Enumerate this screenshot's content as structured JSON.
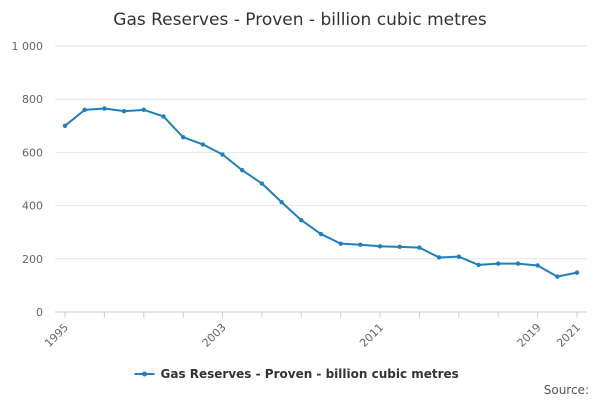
{
  "chart_data": {
    "type": "line",
    "title": "Gas Reserves - Proven - billion cubic metres",
    "xlabel": "",
    "ylabel": "",
    "ylim": [
      0,
      1000
    ],
    "xlim": [
      1995,
      2021
    ],
    "yticks": [
      0,
      200,
      400,
      600,
      800,
      1000
    ],
    "ytick_labels": [
      "0",
      "200",
      "400",
      "600",
      "800",
      "1 000"
    ],
    "xticks": [
      1995,
      2003,
      2011,
      2019,
      2021
    ],
    "xtick_labels": [
      "1995",
      "2003",
      "2011",
      "2019",
      "2021"
    ],
    "grid": true,
    "legend": "bottom",
    "color": "#1f7fbf",
    "series": [
      {
        "name": "Gas Reserves - Proven - billion cubic metres",
        "x": [
          1995,
          1996,
          1997,
          1998,
          1999,
          2000,
          2001,
          2002,
          2003,
          2004,
          2005,
          2006,
          2007,
          2008,
          2009,
          2010,
          2011,
          2012,
          2013,
          2014,
          2015,
          2016,
          2017,
          2018,
          2019,
          2020,
          2021
        ],
        "values": [
          700,
          760,
          765,
          755,
          760,
          735,
          657,
          630,
          592,
          533,
          483,
          413,
          345,
          293,
          257,
          253,
          247,
          245,
          242,
          205,
          208,
          177,
          182,
          182,
          175,
          133,
          148
        ]
      }
    ]
  },
  "footer": {
    "source_label": "Source:"
  }
}
